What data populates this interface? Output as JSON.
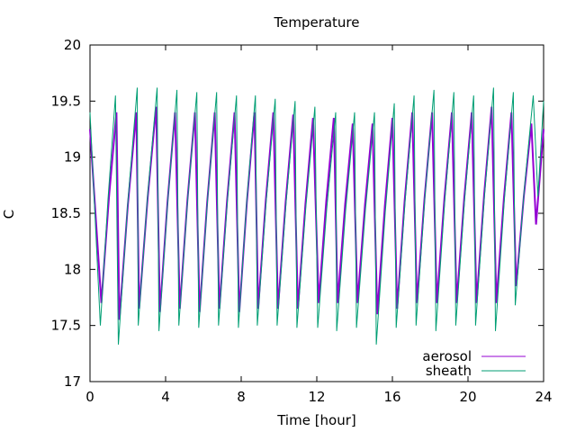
{
  "chart_data": {
    "type": "line",
    "title": "Temperature",
    "xlabel": "Time [hour]",
    "ylabel": "C",
    "xlim": [
      0,
      24
    ],
    "ylim": [
      17,
      20
    ],
    "x_ticks": [
      0,
      4,
      8,
      12,
      16,
      20,
      24
    ],
    "x_tick_labels": [
      "0",
      "4",
      "8",
      "12",
      "16",
      "20",
      "24"
    ],
    "y_ticks": [
      17,
      17.5,
      18,
      18.5,
      19,
      19.5,
      20
    ],
    "y_tick_labels": [
      "17",
      "17.5",
      "18",
      "18.5",
      "19",
      "19.5",
      "20"
    ],
    "grid": false,
    "legend_position": "bottom-right",
    "series": [
      {
        "name": "aerosol",
        "color": "#9400d3",
        "cycles": [
          {
            "t_min": 0.6,
            "min": 17.7,
            "t_max": 1.4,
            "max": 19.4
          },
          {
            "t_min": 1.55,
            "min": 17.55,
            "t_max": 2.45,
            "max": 19.4
          },
          {
            "t_min": 2.6,
            "min": 17.65,
            "t_max": 3.5,
            "max": 19.45
          },
          {
            "t_min": 3.7,
            "min": 17.62,
            "t_max": 4.5,
            "max": 19.4
          },
          {
            "t_min": 4.75,
            "min": 17.65,
            "t_max": 5.55,
            "max": 19.4
          },
          {
            "t_min": 5.8,
            "min": 17.62,
            "t_max": 6.6,
            "max": 19.4
          },
          {
            "t_min": 6.85,
            "min": 17.65,
            "t_max": 7.65,
            "max": 19.4
          },
          {
            "t_min": 7.9,
            "min": 17.62,
            "t_max": 8.7,
            "max": 19.4
          },
          {
            "t_min": 8.9,
            "min": 17.65,
            "t_max": 9.7,
            "max": 19.4
          },
          {
            "t_min": 9.95,
            "min": 17.65,
            "t_max": 10.75,
            "max": 19.38
          },
          {
            "t_min": 11.0,
            "min": 17.65,
            "t_max": 11.8,
            "max": 19.35
          },
          {
            "t_min": 12.1,
            "min": 17.7,
            "t_max": 12.9,
            "max": 19.35
          },
          {
            "t_min": 13.1,
            "min": 17.7,
            "t_max": 13.9,
            "max": 19.3
          },
          {
            "t_min": 14.15,
            "min": 17.7,
            "t_max": 14.95,
            "max": 19.3
          },
          {
            "t_min": 15.2,
            "min": 17.6,
            "t_max": 16.0,
            "max": 19.35
          },
          {
            "t_min": 16.25,
            "min": 17.65,
            "t_max": 17.05,
            "max": 19.4
          },
          {
            "t_min": 17.3,
            "min": 17.7,
            "t_max": 18.1,
            "max": 19.4
          },
          {
            "t_min": 18.35,
            "min": 17.7,
            "t_max": 19.15,
            "max": 19.4
          },
          {
            "t_min": 19.4,
            "min": 17.7,
            "t_max": 20.2,
            "max": 19.4
          },
          {
            "t_min": 20.45,
            "min": 17.7,
            "t_max": 21.25,
            "max": 19.45
          },
          {
            "t_min": 21.5,
            "min": 17.7,
            "t_max": 22.3,
            "max": 19.4
          },
          {
            "t_min": 22.55,
            "min": 17.85,
            "t_max": 23.35,
            "max": 19.3
          }
        ]
      },
      {
        "name": "sheath",
        "color": "#009e73",
        "cycles": [
          {
            "t_min": 0.55,
            "min": 17.5,
            "t_max": 1.35,
            "max": 19.55
          },
          {
            "t_min": 1.5,
            "min": 17.33,
            "t_max": 2.5,
            "max": 19.62
          },
          {
            "t_min": 2.55,
            "min": 17.5,
            "t_max": 3.55,
            "max": 19.62
          },
          {
            "t_min": 3.65,
            "min": 17.45,
            "t_max": 4.6,
            "max": 19.6
          },
          {
            "t_min": 4.7,
            "min": 17.5,
            "t_max": 5.65,
            "max": 19.58
          },
          {
            "t_min": 5.75,
            "min": 17.48,
            "t_max": 6.7,
            "max": 19.58
          },
          {
            "t_min": 6.8,
            "min": 17.5,
            "t_max": 7.75,
            "max": 19.55
          },
          {
            "t_min": 7.85,
            "min": 17.48,
            "t_max": 8.75,
            "max": 19.55
          },
          {
            "t_min": 8.85,
            "min": 17.5,
            "t_max": 9.8,
            "max": 19.52
          },
          {
            "t_min": 9.9,
            "min": 17.5,
            "t_max": 10.85,
            "max": 19.5
          },
          {
            "t_min": 10.95,
            "min": 17.48,
            "t_max": 11.9,
            "max": 19.45
          },
          {
            "t_min": 12.05,
            "min": 17.48,
            "t_max": 13.0,
            "max": 19.4
          },
          {
            "t_min": 13.05,
            "min": 17.45,
            "t_max": 14.0,
            "max": 19.4
          },
          {
            "t_min": 14.1,
            "min": 17.48,
            "t_max": 15.05,
            "max": 19.4
          },
          {
            "t_min": 15.15,
            "min": 17.33,
            "t_max": 16.1,
            "max": 19.48
          },
          {
            "t_min": 16.2,
            "min": 17.48,
            "t_max": 17.15,
            "max": 19.55
          },
          {
            "t_min": 17.25,
            "min": 17.5,
            "t_max": 18.2,
            "max": 19.6
          },
          {
            "t_min": 18.3,
            "min": 17.45,
            "t_max": 19.25,
            "max": 19.58
          },
          {
            "t_min": 19.35,
            "min": 17.5,
            "t_max": 20.3,
            "max": 19.55
          },
          {
            "t_min": 20.4,
            "min": 17.5,
            "t_max": 21.35,
            "max": 19.62
          },
          {
            "t_min": 21.45,
            "min": 17.45,
            "t_max": 22.4,
            "max": 19.58
          },
          {
            "t_min": 22.5,
            "min": 17.68,
            "t_max": 23.45,
            "max": 19.55
          }
        ]
      }
    ]
  }
}
